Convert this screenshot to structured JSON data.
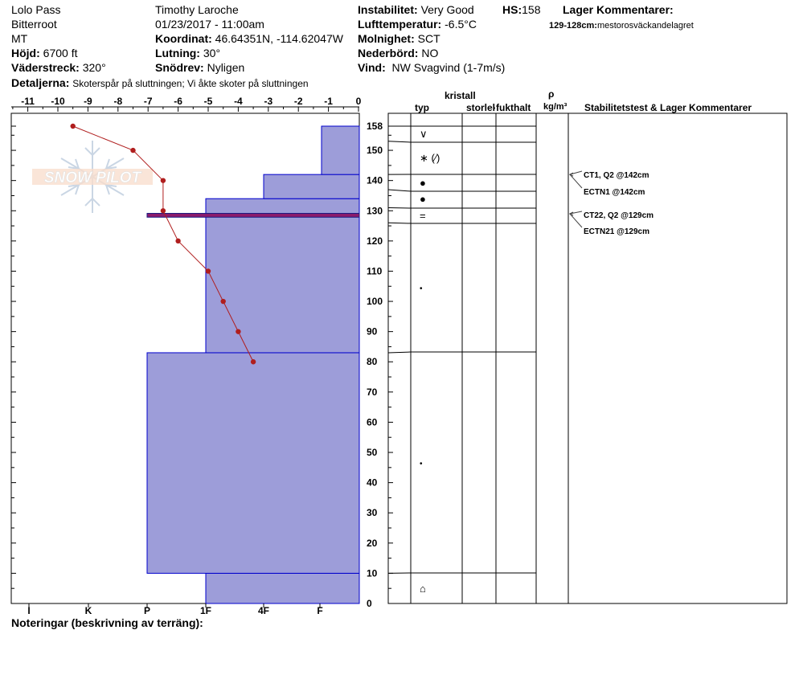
{
  "header": {
    "location": "Lolo Pass",
    "range": "Bitterroot",
    "state": "MT",
    "elevation_label": "Höjd:",
    "elevation_value": "6700 ft",
    "aspect_label": "Väderstreck:",
    "aspect_value": "320°",
    "details_label": "Detaljerna:",
    "details_value": "Skoterspår på sluttningen;  Vi åkte skoter på sluttningen",
    "observer": "Timothy  Laroche",
    "datetime": "01/23/2017 - 11:00am",
    "coord_label": "Koordinat:",
    "coord_value": "46.64351N, -114.62047W",
    "slope_label": "Lutning:",
    "slope_value": "30°",
    "wind_loading_label": "Snödrev:",
    "wind_loading_value": "Nyligen",
    "instability_label": "Instabilitet:",
    "instability_value": "Very Good",
    "hs_label": "HS:",
    "hs_value": "158",
    "airtemp_label": "Lufttemperatur:",
    "airtemp_value": "-6.5°C",
    "sky_label": "Molnighet:",
    "sky_value": "SCT",
    "precip_label": "Nederbörd:",
    "precip_value": "NO",
    "wind_label": "Vind:",
    "wind_value": "NW Svagvind (1-7m/s)",
    "layer_comments_label": "Lager Kommentarer:",
    "layer_comment_range": "129-128cm:",
    "layer_comment_text": "mestorosväckandelagret"
  },
  "footer": {
    "notes_label": "Noteringar (beskrivning av terräng):"
  },
  "logo_text": "SNOW PILOT",
  "colors": {
    "hardness_fill": "#9d9dd9",
    "hardness_stroke": "#0000cc",
    "temp_line": "#b01e1e",
    "weak_layer": "#8b1a6b"
  },
  "columns": {
    "crystal_header": "kristall",
    "type": "typ",
    "size": "storlek",
    "moisture": "fukthalt",
    "density_symbol": "ρ",
    "density_unit": "kg/m³",
    "stability": "Stabilitetstest & Lager Kommentarer"
  },
  "chart_data": {
    "type": "snow-profile",
    "temperature_axis": {
      "ticks": [
        "-11",
        "-10",
        "-9",
        "-8",
        "-7",
        "-6",
        "-5",
        "-4",
        "-3",
        "-2",
        "-1",
        "0"
      ],
      "range": [
        -11.5,
        0
      ]
    },
    "hardness_axis": {
      "ticks": [
        "I",
        "K",
        "P",
        "1F",
        "4F",
        "F"
      ]
    },
    "height_axis": {
      "ticks": [
        "0",
        "10",
        "20",
        "30",
        "40",
        "50",
        "60",
        "70",
        "80",
        "90",
        "100",
        "110",
        "120",
        "130",
        "140",
        "150",
        "158"
      ],
      "range": [
        0,
        158
      ]
    },
    "temperature_profile": [
      {
        "height": 158,
        "temp": -9.5
      },
      {
        "height": 150,
        "temp": -7.5
      },
      {
        "height": 140,
        "temp": -6.5
      },
      {
        "height": 130,
        "temp": -6.5
      },
      {
        "height": 120,
        "temp": -6.0
      },
      {
        "height": 110,
        "temp": -5.0
      },
      {
        "height": 100,
        "temp": -4.5
      },
      {
        "height": 90,
        "temp": -4.0
      },
      {
        "height": 80,
        "temp": -3.5
      }
    ],
    "hardness_layers": [
      {
        "bottom": 0,
        "top": 10,
        "hardness": "1F"
      },
      {
        "bottom": 10,
        "top": 83,
        "hardness": "P"
      },
      {
        "bottom": 83,
        "top": 134,
        "hardness": "1F"
      },
      {
        "bottom": 134,
        "top": 142,
        "hardness": "4F+"
      },
      {
        "bottom": 142,
        "top": 158,
        "hardness": "F+"
      }
    ],
    "weak_layer": {
      "bottom": 128,
      "top": 129
    },
    "layer_boundaries": [
      158,
      153,
      142,
      137,
      131,
      126,
      83,
      10
    ],
    "grain_symbols": [
      {
        "height": 155,
        "symbol": "∨"
      },
      {
        "height": 147,
        "symbol": "∗ (⁄)"
      },
      {
        "height": 139.5,
        "symbol": "●"
      },
      {
        "height": 134,
        "symbol": "●"
      },
      {
        "height": 128.5,
        "symbol": "="
      },
      {
        "height": 104.5,
        "symbol": "•"
      },
      {
        "height": 46.5,
        "symbol": "•"
      },
      {
        "height": 5,
        "symbol": "⌂"
      }
    ],
    "stability_tests": [
      {
        "height": 142,
        "text": "CT1, Q2 @142cm"
      },
      {
        "height": 142,
        "text": "ECTN1 @142cm"
      },
      {
        "height": 129,
        "text": "CT22, Q2 @129cm"
      },
      {
        "height": 129,
        "text": "ECTN21 @129cm"
      }
    ]
  }
}
